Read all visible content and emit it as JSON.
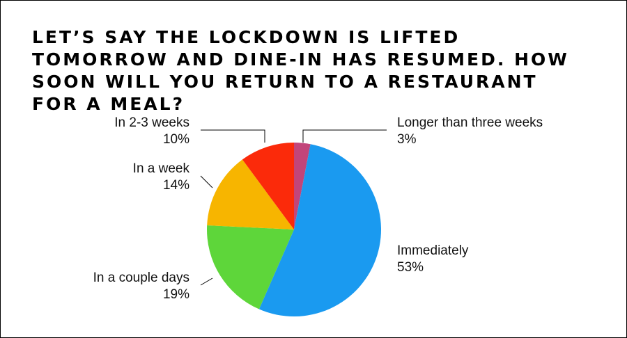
{
  "chart_data": {
    "type": "pie",
    "title": "LET’S SAY THE LOCKDOWN IS LIFTED TOMORROW AND DINE-IN HAS RESUMED. HOW SOON WILL YOU RETURN TO A RESTAURANT FOR A MEAL?",
    "categories": [
      "Longer than three weeks",
      "Immediately",
      "In a couple days",
      "In a week",
      "In 2-3 weeks"
    ],
    "values": [
      3,
      53,
      19,
      14,
      10
    ],
    "value_labels": [
      "3%",
      "53%",
      "19%",
      "14%",
      "10%"
    ],
    "colors": [
      "#c2457a",
      "#1a9af0",
      "#5ed63a",
      "#f7b500",
      "#fb2a0a"
    ]
  }
}
